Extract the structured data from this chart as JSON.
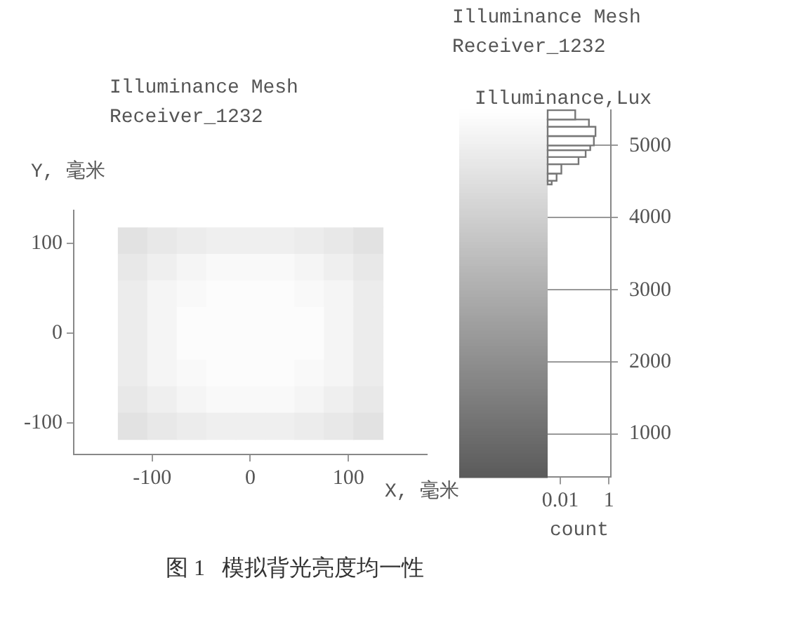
{
  "chart_data": [
    {
      "type": "heatmap",
      "title": "Illuminance Mesh",
      "subtitle": "Receiver_1232",
      "xlabel": "X, 毫米",
      "ylabel": "Y, 毫米",
      "clabel": "Illuminance,Lux",
      "x": [
        -120,
        -90,
        -60,
        -30,
        0,
        30,
        60,
        90,
        120
      ],
      "y": [
        103.25,
        73.75,
        44.25,
        14.75,
        -14.75,
        -44.25,
        -73.75,
        -103.25
      ],
      "cells": [
        [
          4600,
          4800,
          4900,
          5000,
          5000,
          5000,
          4900,
          4800,
          4600
        ],
        [
          4800,
          5000,
          5200,
          5300,
          5300,
          5300,
          5200,
          5000,
          4800
        ],
        [
          4900,
          5200,
          5300,
          5400,
          5400,
          5400,
          5300,
          5200,
          4900
        ],
        [
          4900,
          5200,
          5400,
          5400,
          5400,
          5400,
          5400,
          5200,
          4900
        ],
        [
          4900,
          5200,
          5400,
          5400,
          5400,
          5400,
          5400,
          5200,
          4900
        ],
        [
          4900,
          5200,
          5300,
          5400,
          5400,
          5400,
          5300,
          5200,
          4900
        ],
        [
          4800,
          5000,
          5200,
          5300,
          5300,
          5300,
          5200,
          5000,
          4800
        ],
        [
          4600,
          4800,
          4900,
          5000,
          5000,
          5000,
          4900,
          4800,
          4600
        ]
      ],
      "clim": [
        400,
        5500
      ],
      "cticks": [
        1000,
        2000,
        3000,
        4000,
        5000
      ],
      "xlim": [
        -180,
        180
      ],
      "xticks": [
        -100,
        0,
        100
      ],
      "ylim": [
        -135,
        137
      ],
      "yticks": [
        -100,
        0,
        100
      ],
      "annotations": [
        "图 1   模拟背光亮度均一性"
      ]
    },
    {
      "type": "histogram",
      "title": "Illuminance Mesh",
      "subtitle": "Receiver_1232",
      "xlabel": "count",
      "orientation": "horizontal",
      "log": "x",
      "grid": "y",
      "tick_labels": "x",
      "bins": [
        4460,
        4510,
        4610,
        4740,
        4840,
        4935,
        5000,
        5130,
        5260,
        5360,
        5490
      ],
      "values": [
        0.0044,
        0.007,
        0.011,
        0.056,
        0.11,
        0.17,
        0.24,
        0.28,
        0.15,
        0.041
      ],
      "color": "#777777",
      "xlim": [
        0.003,
        1.2
      ],
      "xticks": [
        0.01,
        1
      ],
      "ylim": [
        400,
        5500
      ],
      "yticks": [
        1000,
        2000,
        3000,
        4000,
        5000
      ]
    }
  ]
}
